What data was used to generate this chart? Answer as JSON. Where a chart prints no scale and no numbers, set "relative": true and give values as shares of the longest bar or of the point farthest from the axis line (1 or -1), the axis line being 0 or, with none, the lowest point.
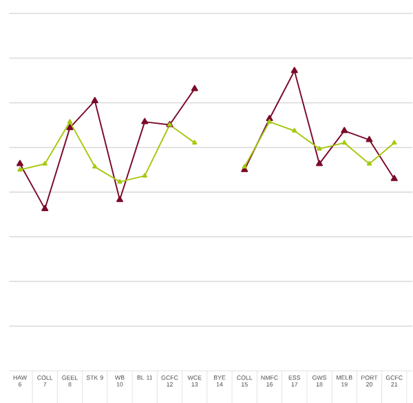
{
  "chart_data": {
    "type": "line",
    "relative": true,
    "grid": "y",
    "marker": "triangle",
    "categories": [
      "HAW 6",
      "COLL 7",
      "GEEL 8",
      "STK 9",
      "WB 10",
      "BL 11",
      "GCFC 12",
      "WCE 13",
      "BYE 14",
      "COLL 15",
      "NMFC 16",
      "ESS 17",
      "GWS 18",
      "MELB 19",
      "PORT 20",
      "GCFC 21"
    ],
    "series": [
      {
        "color": "#7b0a2a",
        "values": [
          0.69,
          0.54,
          0.81,
          0.9,
          0.57,
          0.83,
          0.82,
          0.94,
          null,
          0.67,
          0.84,
          1,
          0.69,
          0.8,
          0.77,
          0.64
        ]
      },
      {
        "color": "#a5c90f",
        "values": [
          0.67,
          0.69,
          0.83,
          0.68,
          0.63,
          0.65,
          0.82,
          0.76,
          null,
          0.68,
          0.83,
          0.8,
          0.74,
          0.76,
          0.69,
          0.76
        ]
      }
    ]
  }
}
